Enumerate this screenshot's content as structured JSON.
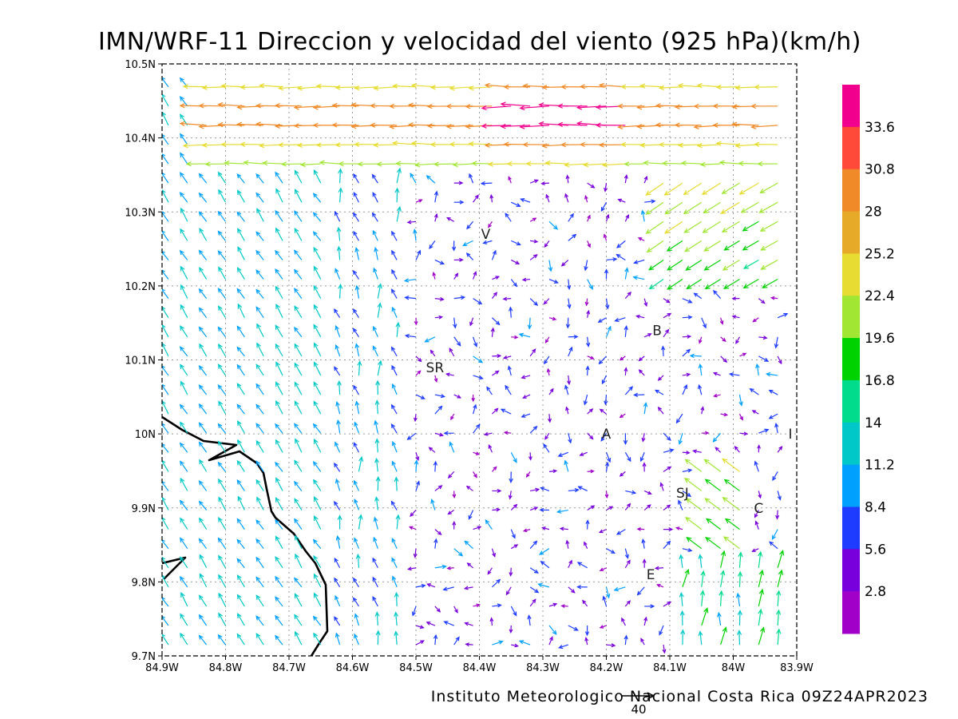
{
  "title": "IMN/WRF-11 Direccion y velocidad del viento (925 hPa)(km/h)",
  "credit": "Instituto Meteorologico Nacional Costa Rica 09Z24APR2023",
  "reference_vector": {
    "label": "40",
    "value": 40
  },
  "map": {
    "lon_ticks": [
      "84.9W",
      "84.8W",
      "84.7W",
      "84.6W",
      "84.5W",
      "84.4W",
      "84.3W",
      "84.2W",
      "84.1W",
      "84W",
      "83.9W"
    ],
    "lat_ticks": [
      "10.5N",
      "10.4N",
      "10.3N",
      "10.2N",
      "10.1N",
      "10N",
      "9.9N",
      "9.8N",
      "9.7N"
    ],
    "lon_range": [
      -84.9,
      -83.9
    ],
    "lat_range": [
      9.7,
      10.5
    ],
    "grid": "dotted"
  },
  "cities": [
    {
      "label": "V",
      "lon": -84.39,
      "lat": 10.27
    },
    {
      "label": "SR",
      "lon": -84.47,
      "lat": 10.09
    },
    {
      "label": "B",
      "lon": -84.12,
      "lat": 10.14
    },
    {
      "label": "A",
      "lon": -84.2,
      "lat": 10.0
    },
    {
      "label": "I",
      "lon": -83.91,
      "lat": 10.0
    },
    {
      "label": "SJ",
      "lon": -84.08,
      "lat": 9.92
    },
    {
      "label": "C",
      "lon": -83.96,
      "lat": 9.9
    },
    {
      "label": "E",
      "lon": -84.13,
      "lat": 9.81
    }
  ],
  "colorbar": {
    "labels": [
      "33.6",
      "30.8",
      "28",
      "25.2",
      "22.4",
      "19.6",
      "16.8",
      "14",
      "11.2",
      "8.4",
      "5.6",
      "2.8"
    ],
    "colors": [
      "#f0008c",
      "#ff4a3a",
      "#f08a28",
      "#e6aa28",
      "#e6dc32",
      "#a0e632",
      "#00d200",
      "#00dc8c",
      "#00c8c8",
      "#00a0ff",
      "#1e3cff",
      "#7800dc",
      "#a000c8"
    ]
  },
  "chart_data": {
    "type": "vector-field",
    "title": "IMN/WRF-11 Direccion y velocidad del viento (925 hPa)(km/h)",
    "units": "km/h",
    "level": "925 hPa",
    "valid": "09Z24APR2023",
    "x_range": [
      -84.9,
      -83.9
    ],
    "y_range": [
      9.7,
      10.5
    ],
    "color_scale_levels": [
      2.8,
      5.6,
      8.4,
      11.2,
      14,
      16.8,
      19.6,
      22.4,
      25.2,
      28,
      30.8,
      33.6
    ],
    "grid_spacing_deg": 0.03,
    "wind_field_regions": [
      {
        "name": "northern jet band",
        "lat": [
          10.35,
          10.5
        ],
        "lon": [
          -84.8,
          -83.9
        ],
        "direction_deg": 270,
        "speed": [
          22,
          34
        ]
      },
      {
        "name": "northeast inflow",
        "lat": [
          10.22,
          10.38
        ],
        "lon": [
          -84.15,
          -83.9
        ],
        "direction_deg": 230,
        "speed": [
          18,
          26
        ]
      },
      {
        "name": "western southeasterly flow",
        "lat": [
          9.7,
          10.2
        ],
        "lon": [
          -84.9,
          -84.62
        ],
        "direction_deg": 120,
        "speed": [
          9,
          14
        ]
      },
      {
        "name": "central light and variable",
        "lat": [
          9.8,
          10.3
        ],
        "lon": [
          -84.55,
          -84.0
        ],
        "direction_deg": 45,
        "speed": [
          2,
          8
        ]
      },
      {
        "name": "southeast northerly flow",
        "lat": [
          9.7,
          9.8
        ],
        "lon": [
          -84.1,
          -83.9
        ],
        "direction_deg": 190,
        "speed": [
          12,
          20
        ]
      }
    ]
  }
}
